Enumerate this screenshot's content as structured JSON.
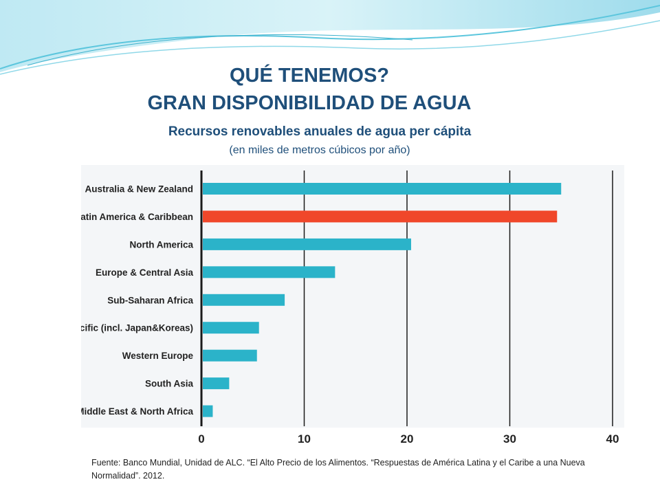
{
  "slide": {
    "title_line1": "QUÉ TENEMOS?",
    "title_line2": "GRAN DISPONIBILIDAD DE AGUA",
    "source": "Fuente: Banco Mundial, Unidad de ALC. “El Alto Precio de los Alimentos. “Respuestas de América Latina y el Caribe a una Nueva Normalidad”. 2012."
  },
  "colors": {
    "bar_default": "#2bb3c9",
    "bar_highlight": "#f0472a",
    "title": "#1f4f7a"
  },
  "chart_data": {
    "type": "bar",
    "orientation": "horizontal",
    "title": "Recursos renovables anuales de agua per cápita",
    "subtitle": "(en miles de metros cúbicos por año)",
    "categories": [
      "Australia & New Zealand",
      "Latin America & Caribbean",
      "North America",
      "Europe & Central Asia",
      "Sub-Saharan Africa",
      "East Asia & Pacific (incl. Japan&Koreas)",
      "Western Europe",
      "South Asia",
      "Middle East & North Africa"
    ],
    "values": [
      35,
      34.6,
      20.4,
      13,
      8.1,
      5.6,
      5.4,
      2.7,
      1.1
    ],
    "highlight": "Latin America & Caribbean",
    "xlim": [
      0,
      40
    ],
    "xticks": [
      0,
      10,
      20,
      30,
      40
    ],
    "grid": "vertical"
  }
}
